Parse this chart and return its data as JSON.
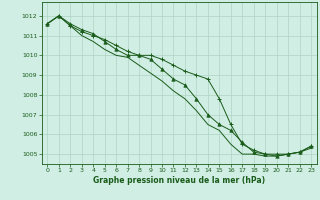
{
  "title": "Graphe pression niveau de la mer (hPa)",
  "bg_color": "#d0eee4",
  "plot_bg_color": "#d0eee4",
  "grid_color": "#b0d4c4",
  "line_color": "#1a5c1a",
  "xlim": [
    -0.5,
    23.5
  ],
  "ylim": [
    1004.5,
    1012.7
  ],
  "yticks": [
    1005,
    1006,
    1007,
    1008,
    1009,
    1010,
    1011,
    1012
  ],
  "xticks": [
    0,
    1,
    2,
    3,
    4,
    5,
    6,
    7,
    8,
    9,
    10,
    11,
    12,
    13,
    14,
    15,
    16,
    17,
    18,
    19,
    20,
    21,
    22,
    23
  ],
  "line1": [
    1011.6,
    1012.0,
    1011.5,
    1011.2,
    1011.0,
    1010.8,
    1010.5,
    1010.2,
    1010.0,
    1010.0,
    1009.8,
    1009.5,
    1009.2,
    1009.0,
    1008.8,
    1007.8,
    1006.5,
    1005.5,
    1005.2,
    1005.0,
    1005.0,
    1005.0,
    1005.1,
    1005.4
  ],
  "line2": [
    1011.6,
    1012.0,
    1011.6,
    1011.3,
    1011.1,
    1010.7,
    1010.3,
    1010.0,
    1010.0,
    1009.8,
    1009.3,
    1008.8,
    1008.5,
    1007.8,
    1007.0,
    1006.5,
    1006.2,
    1005.6,
    1005.1,
    1005.0,
    1004.9,
    1005.0,
    1005.1,
    1005.4
  ],
  "line3": [
    1011.6,
    1012.0,
    1011.5,
    1011.0,
    1010.7,
    1010.3,
    1010.0,
    1009.9,
    1009.5,
    1009.1,
    1008.7,
    1008.2,
    1007.8,
    1007.2,
    1006.5,
    1006.2,
    1005.5,
    1005.0,
    1005.0,
    1004.9,
    1004.9,
    1005.0,
    1005.1,
    1005.3
  ]
}
